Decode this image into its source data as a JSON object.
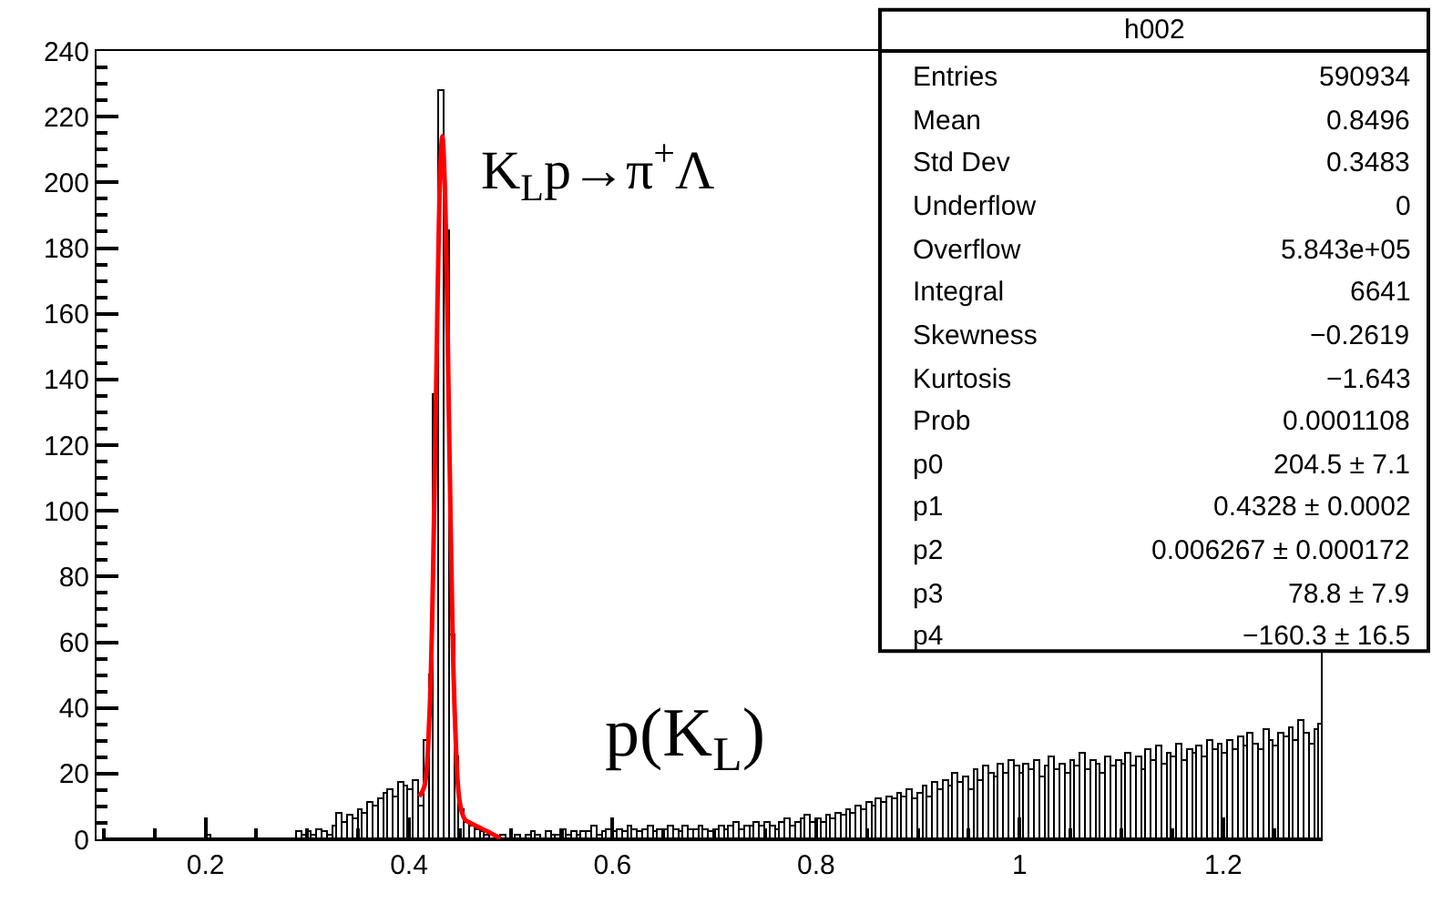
{
  "chart_data": {
    "type": "histogram",
    "bins": [
      0.1,
      0.105,
      0.11,
      0.115,
      0.12,
      0.125,
      0.13,
      0.135,
      0.14,
      0.145,
      0.15,
      0.155,
      0.16,
      0.165,
      0.17,
      0.175,
      0.18,
      0.185,
      0.19,
      0.195,
      0.2,
      0.205,
      0.21,
      0.215,
      0.22,
      0.225,
      0.23,
      0.235,
      0.24,
      0.245,
      0.25,
      0.255,
      0.26,
      0.265,
      0.27,
      0.275,
      0.28,
      0.285,
      0.29,
      0.295,
      0.3,
      0.305,
      0.31,
      0.315,
      0.32,
      0.325,
      0.33,
      0.335,
      0.34,
      0.345,
      0.35,
      0.355,
      0.36,
      0.365,
      0.37,
      0.375,
      0.38,
      0.385,
      0.39,
      0.395,
      0.4,
      0.405,
      0.41,
      0.415,
      0.42,
      0.425,
      0.43,
      0.435,
      0.44,
      0.445,
      0.45,
      0.455,
      0.46,
      0.465,
      0.47,
      0.475,
      0.48,
      0.485,
      0.49,
      0.495,
      0.5,
      0.505,
      0.51,
      0.515,
      0.52,
      0.525,
      0.53,
      0.535,
      0.54,
      0.545,
      0.55,
      0.555,
      0.56,
      0.565,
      0.57,
      0.575,
      0.58,
      0.585,
      0.59,
      0.595,
      0.6,
      0.605,
      0.61,
      0.615,
      0.62,
      0.625,
      0.63,
      0.635,
      0.64,
      0.645,
      0.65,
      0.655,
      0.66,
      0.665,
      0.67,
      0.675,
      0.68,
      0.685,
      0.69,
      0.695,
      0.7,
      0.705,
      0.71,
      0.715,
      0.72,
      0.725,
      0.73,
      0.735,
      0.74,
      0.745,
      0.75,
      0.755,
      0.76,
      0.765,
      0.77,
      0.775,
      0.78,
      0.785,
      0.79,
      0.795,
      0.8,
      0.805,
      0.81,
      0.815,
      0.82,
      0.825,
      0.83,
      0.835,
      0.84,
      0.845,
      0.85,
      0.855,
      0.86,
      0.865,
      0.87,
      0.875,
      0.88,
      0.885,
      0.89,
      0.895,
      0.9,
      0.905,
      0.91,
      0.915,
      0.92,
      0.925,
      0.93,
      0.935,
      0.94,
      0.945,
      0.95,
      0.955,
      0.96,
      0.965,
      0.97,
      0.975,
      0.98,
      0.985,
      0.99,
      0.995,
      1.0,
      1.005,
      1.01,
      1.015,
      1.02,
      1.025,
      1.03,
      1.035,
      1.04,
      1.045,
      1.05,
      1.055,
      1.06,
      1.065,
      1.07,
      1.075,
      1.08,
      1.085,
      1.09,
      1.095,
      1.1,
      1.105,
      1.11,
      1.115,
      1.12,
      1.125,
      1.13,
      1.135,
      1.14,
      1.145,
      1.15,
      1.155,
      1.16,
      1.165,
      1.17,
      1.175,
      1.18,
      1.185,
      1.19,
      1.195,
      1.2,
      1.205,
      1.21,
      1.215,
      1.22,
      1.225,
      1.23,
      1.235,
      1.24,
      1.245,
      1.25,
      1.255,
      1.26,
      1.265,
      1.27,
      1.275,
      1.28,
      1.285,
      1.29,
      1.295,
      1.3
    ],
    "series": [
      {
        "color": "#000000",
        "values": [
          0,
          0,
          0,
          0,
          0,
          0,
          0,
          0,
          0,
          0,
          0,
          0,
          0,
          0,
          0,
          0,
          0,
          0,
          0,
          0,
          1,
          0,
          0,
          0,
          0,
          0,
          0,
          0,
          0,
          0,
          0,
          0,
          0,
          0,
          0,
          0,
          0,
          0,
          2,
          1,
          2,
          1,
          3,
          2,
          1,
          4,
          8,
          5,
          7,
          6,
          9,
          8,
          11,
          10,
          12,
          14,
          15,
          13,
          17,
          16,
          15,
          18,
          10,
          30,
          50,
          135,
          228,
          185,
          62,
          25,
          9,
          5,
          4,
          3,
          2,
          1,
          1,
          0,
          1,
          0,
          0,
          1,
          0,
          1,
          2,
          1,
          0,
          2,
          1,
          1,
          3,
          1,
          2,
          1,
          2,
          2,
          4,
          1,
          2,
          3,
          2,
          3,
          2,
          4,
          3,
          2,
          3,
          4,
          2,
          3,
          3,
          4,
          3,
          2,
          4,
          3,
          3,
          4,
          3,
          2,
          3,
          4,
          3,
          4,
          5,
          3,
          4,
          4,
          5,
          4,
          5,
          4,
          3,
          5,
          6,
          4,
          5,
          6,
          7,
          5,
          6,
          5,
          7,
          6,
          8,
          7,
          9,
          8,
          10,
          9,
          11,
          10,
          12,
          11,
          13,
          12,
          14,
          13,
          15,
          12,
          14,
          16,
          13,
          17,
          15,
          18,
          16,
          20,
          17,
          19,
          15,
          21,
          18,
          22,
          20,
          19,
          23,
          20,
          24,
          22,
          20,
          23,
          21,
          24,
          19,
          22,
          25,
          21,
          23,
          20,
          24,
          22,
          26,
          21,
          24,
          23,
          20,
          25,
          22,
          24,
          23,
          26,
          22,
          25,
          21,
          27,
          24,
          28,
          23,
          26,
          25,
          29,
          24,
          27,
          26,
          28,
          25,
          30,
          27,
          29,
          26,
          30,
          27,
          31,
          28,
          32,
          29,
          27,
          33,
          30,
          28,
          32,
          31,
          34,
          30,
          36,
          32,
          29,
          33,
          35
        ]
      },
      {
        "type": "line",
        "color": "#ff0000",
        "x": [
          0.41,
          0.415,
          0.42,
          0.425,
          0.428,
          0.431,
          0.4328,
          0.435,
          0.438,
          0.441,
          0.445,
          0.45,
          0.455,
          0.46,
          0.47,
          0.48,
          0.49
        ],
        "values": [
          13,
          16,
          37,
          105,
          163,
          206,
          214,
          201,
          154,
          95,
          38,
          11,
          6,
          5,
          3.5,
          1.9,
          0.3
        ]
      }
    ],
    "xlim": [
      0.093,
      1.296
    ],
    "xticks": [
      0.2,
      0.4,
      0.6,
      0.8,
      1,
      1.2
    ],
    "ylim": [
      0,
      240
    ],
    "yticks": [
      0,
      20,
      40,
      60,
      80,
      100,
      120,
      140,
      160,
      180,
      200,
      220,
      240
    ],
    "annotations": [
      "K$_{L}$p→π$^{+}$Λ",
      "p(K$_{L}$)",
      "h002",
      "Entries",
      "590934",
      "Mean",
      "0.8496",
      "Std Dev",
      "0.3483",
      "Underflow",
      "0",
      "Overflow",
      "5.843e+05",
      "Integral",
      "6641",
      "Skewness",
      "−0.2619",
      "Kurtosis",
      "−1.643",
      "Prob",
      "0.0001108",
      "p0",
      "204.5 ± 7.1",
      "p1",
      "0.4328 ± 0.0002",
      "p2",
      "0.006267 ± 0.000172",
      "p3",
      "78.8 ± 7.9",
      "p4",
      "−160.3 ± 16.5"
    ]
  }
}
